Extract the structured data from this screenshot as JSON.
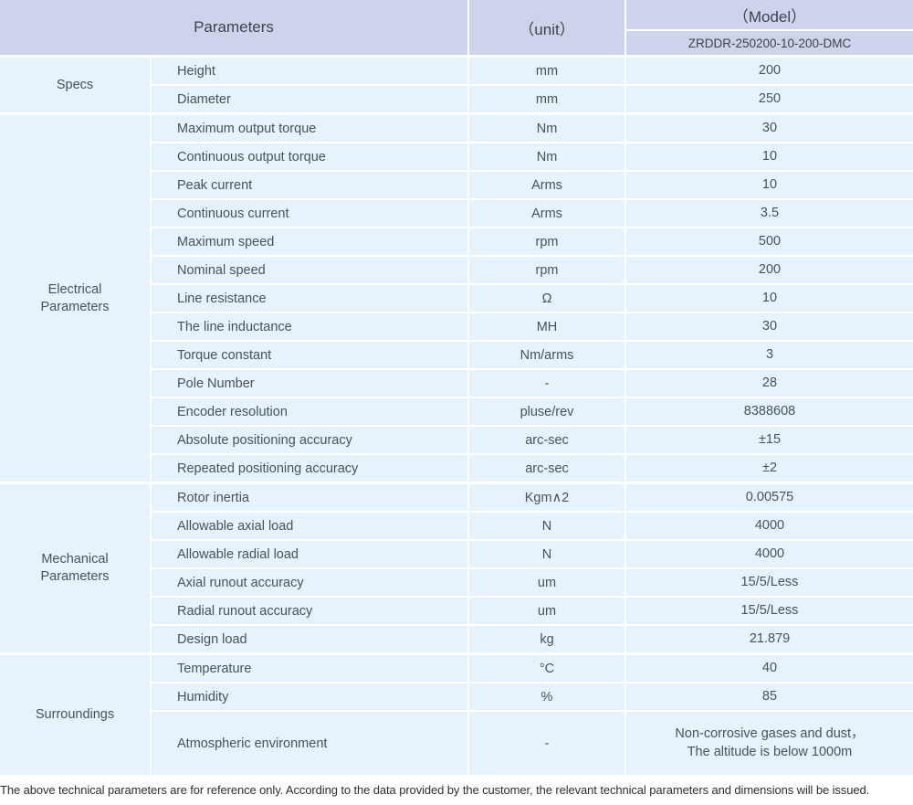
{
  "header": {
    "parameters": "Parameters",
    "unit": "（unit）",
    "model": "（Model）",
    "model_number": "ZRDDR-250200-10-200-DMC"
  },
  "sections": [
    {
      "label": "Specs",
      "rows": [
        {
          "param": "Height",
          "unit": "mm",
          "value": "200"
        },
        {
          "param": "Diameter",
          "unit": "mm",
          "value": "250"
        }
      ]
    },
    {
      "label": "Electrical\nParameters",
      "rows": [
        {
          "param": "Maximum output torque",
          "unit": "Nm",
          "value": "30"
        },
        {
          "param": "Continuous output torque",
          "unit": "Nm",
          "value": "10"
        },
        {
          "param": "Peak current",
          "unit": "Arms",
          "value": "10"
        },
        {
          "param": "Continuous current",
          "unit": "Arms",
          "value": "3.5"
        },
        {
          "param": "Maximum speed",
          "unit": "rpm",
          "value": "500"
        },
        {
          "param": "Nominal speed",
          "unit": "rpm",
          "value": "200"
        },
        {
          "param": "Line resistance",
          "unit": "Ω",
          "value": "10"
        },
        {
          "param": "The line inductance",
          "unit": "MH",
          "value": "30"
        },
        {
          "param": "Torque constant",
          "unit": "Nm/arms",
          "value": "3"
        },
        {
          "param": "Pole Number",
          "unit": "-",
          "value": "28"
        },
        {
          "param": "Encoder resolution",
          "unit": "pluse/rev",
          "value": "8388608"
        },
        {
          "param": "Absolute positioning accuracy",
          "unit": "arc-sec",
          "value": "±15"
        },
        {
          "param": "Repeated positioning accuracy",
          "unit": "arc-sec",
          "value": "±2"
        }
      ]
    },
    {
      "label": "Mechanical\nParameters",
      "rows": [
        {
          "param": "Rotor inertia",
          "unit": "Kgm∧2",
          "value": "0.00575"
        },
        {
          "param": "Allowable axial load",
          "unit": "N",
          "value": "4000"
        },
        {
          "param": "Allowable radial load",
          "unit": "N",
          "value": "4000"
        },
        {
          "param": "Axial runout accuracy",
          "unit": "um",
          "value": "15/5/Less"
        },
        {
          "param": "Radial runout accuracy",
          "unit": "um",
          "value": "15/5/Less"
        },
        {
          "param": "Design load",
          "unit": "kg",
          "value": "21.879"
        }
      ]
    },
    {
      "label": "Surroundings",
      "rows": [
        {
          "param": "Temperature",
          "unit": "°C",
          "value": "40"
        },
        {
          "param": "Humidity",
          "unit": "%",
          "value": "85"
        },
        {
          "param": "Atmospheric environment",
          "unit": "-",
          "value": "Non-corrosive gases and dust，\nThe altitude is below 1000m"
        }
      ]
    }
  ],
  "footer": {
    "note": "The above technical parameters are for reference only. According to the data provided by the customer, the relevant technical parameters and dimensions will be issued."
  },
  "colors": {
    "header_bg": "#ccd3ea",
    "cell_bg": "#e6f2fc",
    "grid_line": "#ffffff",
    "body_text": "#4b515b",
    "header_text": "#3d4350"
  }
}
